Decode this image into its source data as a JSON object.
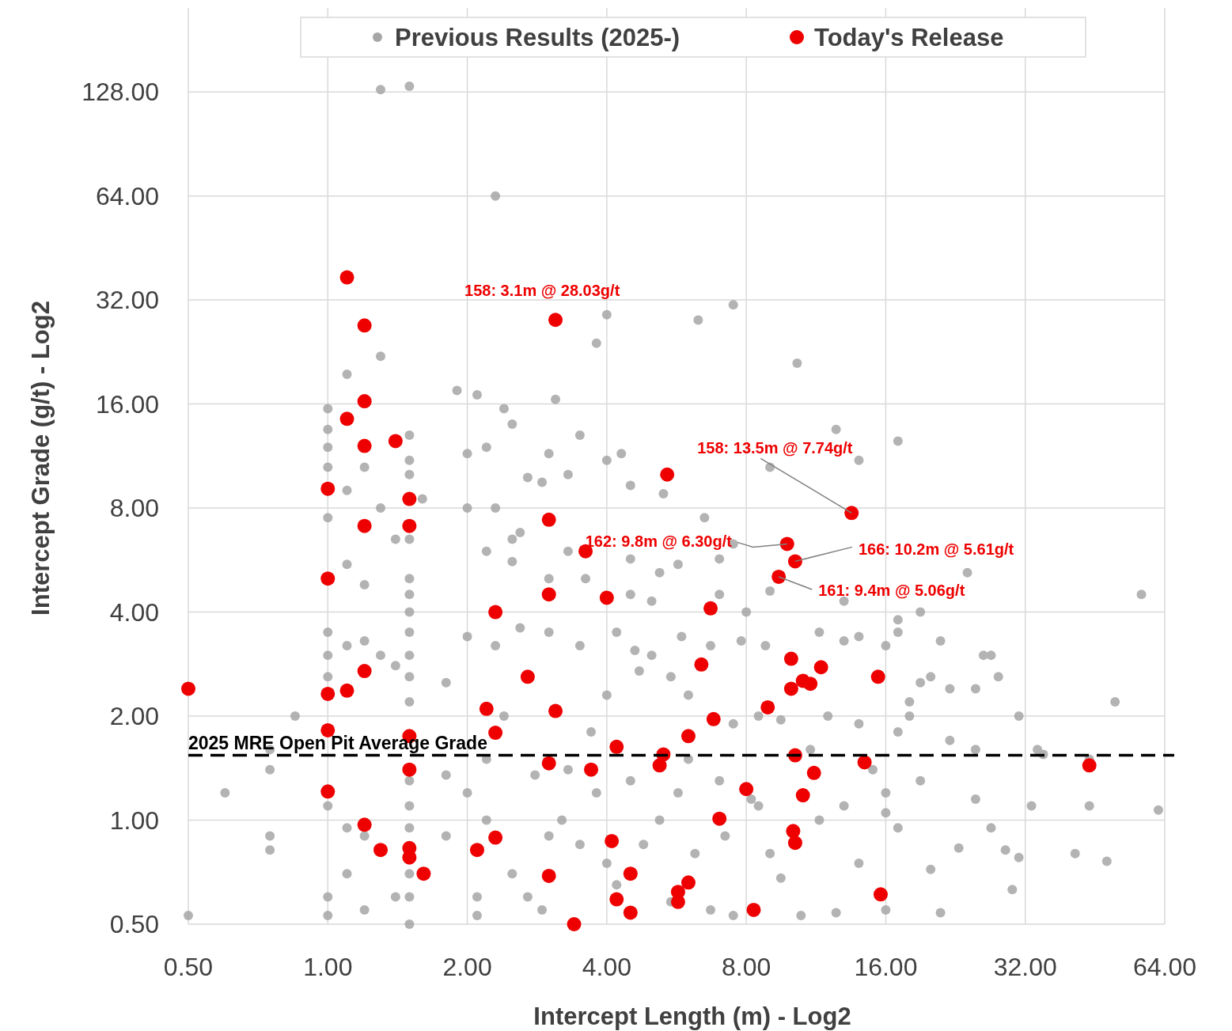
{
  "chart_data": {
    "type": "scatter",
    "xlabel": "Intercept Length (m) - Log2",
    "ylabel": "Intercept Grade (g/t) - Log2",
    "log": "xy",
    "grid": true,
    "legend": "top",
    "marker": "circle",
    "xlim": [
      0.5,
      64
    ],
    "ylim": [
      0.5,
      224
    ],
    "xticks": [
      {
        "value": 0.5,
        "label": "0.50"
      },
      {
        "value": 1,
        "label": "1.00"
      },
      {
        "value": 2,
        "label": "2.00"
      },
      {
        "value": 4,
        "label": "4.00"
      },
      {
        "value": 8,
        "label": "8.00"
      },
      {
        "value": 16,
        "label": "16.00"
      },
      {
        "value": 32,
        "label": "32.00"
      },
      {
        "value": 64,
        "label": "64.00"
      }
    ],
    "yticks": [
      {
        "value": 0.5,
        "label": "0.50"
      },
      {
        "value": 1,
        "label": "1.00"
      },
      {
        "value": 2,
        "label": "2.00"
      },
      {
        "value": 4,
        "label": "4.00"
      },
      {
        "value": 8,
        "label": "8.00"
      },
      {
        "value": 16,
        "label": "16.00"
      },
      {
        "value": 32,
        "label": "32.00"
      },
      {
        "value": 64,
        "label": "64.00"
      },
      {
        "value": 128,
        "label": "128.00"
      }
    ],
    "ref_lines": [
      {
        "axis": "y",
        "value": 1.54,
        "label": "2025 MRE Open Pit Average Grade",
        "color": "#000000",
        "line_style": "dashed"
      }
    ],
    "annotations": [
      {
        "text": "158: 3.1m @ 28.03g/t",
        "x": 3.1,
        "y": 28.03
      },
      {
        "text": "158: 13.5m @ 7.74g/t",
        "x": 13.5,
        "y": 7.74
      },
      {
        "text": "162: 9.8m @ 6.30g/t",
        "x": 9.8,
        "y": 6.3
      },
      {
        "text": "166: 10.2m @ 5.61g/t",
        "x": 10.2,
        "y": 5.61
      },
      {
        "text": "161: 9.4m @ 5.06g/t",
        "x": 9.4,
        "y": 5.06
      }
    ],
    "series": [
      {
        "name": "Previous Results (2025-)",
        "color": "#a6a6a6",
        "x": [
          1.3,
          1.5,
          2.3,
          7.5,
          4.0,
          6.3,
          3.8,
          10.3,
          1.1,
          1.3,
          1.9,
          2.1,
          2.4,
          2.5,
          3.1,
          1.0,
          1.0,
          1.0,
          1.0,
          1.1,
          1.0,
          1.1,
          1.2,
          1.0,
          1.0,
          1.0,
          1.1,
          1.2,
          1.3,
          1.4,
          1.5,
          1.5,
          1.5,
          1.5,
          1.5,
          1.5,
          1.5,
          1.5,
          1.5,
          1.5,
          1.5,
          1.4,
          1.3,
          1.2,
          1.6,
          3.5,
          4.3,
          4.0,
          3.0,
          2.2,
          2.0,
          12.5,
          17,
          9,
          14,
          2.7,
          4.5,
          5.3,
          3.3,
          2.9,
          2.0,
          2.3,
          2.6,
          2.2,
          2.5,
          2.5,
          3.0,
          3.3,
          3.6,
          4.5,
          5.2,
          5.7,
          6.5,
          7,
          7.5,
          8,
          9,
          7,
          5,
          4.5,
          13,
          17,
          17,
          19,
          21,
          24,
          26,
          27,
          57,
          3,
          2,
          2.3,
          2.6,
          3.5,
          4.2,
          4.6,
          5,
          5.8,
          6.7,
          7.8,
          8.8,
          11.5,
          13,
          14,
          16,
          19,
          20,
          22,
          25,
          28,
          18,
          18,
          17,
          22,
          31,
          44,
          50,
          34,
          14,
          12,
          9.5,
          8.5,
          7.5,
          6,
          5.5,
          4,
          3.7,
          4.7,
          2.4,
          1.8,
          0.85,
          0.75,
          0.75,
          0.6,
          0.75,
          0.75,
          1.0,
          1.1,
          1.2,
          1.5,
          1.5,
          1.5,
          1.5,
          1.5,
          1.5,
          1.0,
          1.0,
          1.1,
          1.2,
          1.4,
          1.8,
          2.0,
          2.2,
          2.1,
          2.1,
          2.5,
          2.7,
          2.9,
          3.0,
          3.2,
          3.5,
          3.8,
          4.0,
          4.2,
          4.8,
          5.2,
          5.7,
          5.5,
          6.2,
          6.7,
          7.2,
          7.5,
          8.5,
          9,
          9.5,
          10.5,
          11.5,
          12.5,
          13,
          14,
          16,
          16,
          17,
          19,
          20,
          21,
          23,
          25,
          27,
          29,
          30,
          31,
          33,
          41,
          44,
          48,
          62,
          0.5,
          11,
          15,
          16,
          25,
          35,
          6,
          7,
          8.2,
          4.5,
          3.3,
          2.8,
          2.2,
          1.8
        ],
        "values": [
          130,
          133,
          64,
          31,
          29,
          28,
          24,
          21,
          19.5,
          22,
          17.5,
          17,
          15.5,
          14,
          16.5,
          15.5,
          13.5,
          12,
          10.5,
          9,
          7.5,
          5.5,
          4.8,
          3.5,
          3.0,
          2.6,
          3.2,
          3.3,
          3.0,
          2.8,
          3.0,
          2.6,
          2.2,
          4.5,
          5.0,
          4.0,
          3.5,
          10,
          11,
          13,
          6.5,
          6.5,
          8,
          10.5,
          8.5,
          13,
          11.5,
          11,
          11.5,
          12,
          11.5,
          13.5,
          12.5,
          10.5,
          11,
          9.8,
          9.3,
          8.8,
          10,
          9.5,
          8.0,
          8,
          6.8,
          6,
          5.6,
          6.5,
          5,
          6,
          5,
          5.7,
          5.2,
          5.5,
          7.5,
          5.7,
          6.3,
          4,
          4.6,
          4.5,
          4.3,
          4.5,
          4.3,
          3.5,
          3.8,
          4,
          3.3,
          5.2,
          3,
          3,
          4.5,
          3.5,
          3.4,
          3.2,
          3.6,
          3.2,
          3.5,
          3.1,
          3,
          3.4,
          3.2,
          3.3,
          3.2,
          3.5,
          3.3,
          3.4,
          3.2,
          2.5,
          2.6,
          2.4,
          2.4,
          2.6,
          2.2,
          2.0,
          1.8,
          1.7,
          2.0,
          1.5,
          2.2,
          1.6,
          1.9,
          2.0,
          1.95,
          2.0,
          1.9,
          2.3,
          2.6,
          2.3,
          1.8,
          2.7,
          2.0,
          2.5,
          2.0,
          1.6,
          1.4,
          1.2,
          0.9,
          0.82,
          1.1,
          0.95,
          0.9,
          1.3,
          1.1,
          0.95,
          0.7,
          0.6,
          0.5,
          0.6,
          0.53,
          0.7,
          0.55,
          0.6,
          0.9,
          1.2,
          1.0,
          0.6,
          0.53,
          0.7,
          0.6,
          0.55,
          0.9,
          1.0,
          0.85,
          1.2,
          0.75,
          0.65,
          0.85,
          1.0,
          1.2,
          0.58,
          0.8,
          0.55,
          0.9,
          0.53,
          1.1,
          0.8,
          0.68,
          0.53,
          1.0,
          0.54,
          1.1,
          0.75,
          1.05,
          0.55,
          0.95,
          1.3,
          0.72,
          0.54,
          0.83,
          1.15,
          0.95,
          0.82,
          0.63,
          0.78,
          1.1,
          0.8,
          1.1,
          0.76,
          1.07,
          0.53,
          1.6,
          1.4,
          1.2,
          1.6,
          1.55,
          1.5,
          1.3,
          1.15,
          1.3,
          1.4,
          1.35,
          1.5,
          1.35
        ]
      },
      {
        "name": "Today's Release",
        "color": "#ee0000",
        "x": [
          0.5,
          1.1,
          1.2,
          1.2,
          1.1,
          1.2,
          1.4,
          1.0,
          1.5,
          1.2,
          1.5,
          1.0,
          1.2,
          1.1,
          1.0,
          1.0,
          1.5,
          1.5,
          1.0,
          1.2,
          1.3,
          1.5,
          1.5,
          1.61,
          3.1,
          3.0,
          3.6,
          3.0,
          4.0,
          2.3,
          2.7,
          2.2,
          3.1,
          2.3,
          4.2,
          3.0,
          3.7,
          2.1,
          2.3,
          4.1,
          3.0,
          4.5,
          3.4,
          4.2,
          4.5,
          5.4,
          6.7,
          6.4,
          6.8,
          6.0,
          5.3,
          5.2,
          7.0,
          6.0,
          5.7,
          5.7,
          8.3,
          8.0,
          8.9,
          13.5,
          9.8,
          10.2,
          9.4,
          10.0,
          10.0,
          10.6,
          11.0,
          11.6,
          10.2,
          11.2,
          10.6,
          10.1,
          10.2,
          14.4,
          15.4,
          15.6,
          44
        ],
        "values": [
          2.4,
          37.2,
          27,
          16.3,
          14.5,
          12.1,
          12.5,
          9.1,
          8.5,
          7.1,
          7.1,
          5.0,
          2.7,
          2.37,
          2.32,
          1.82,
          1.75,
          1.4,
          1.21,
          0.97,
          0.82,
          0.83,
          0.78,
          0.7,
          28.03,
          7.4,
          6.0,
          4.5,
          4.4,
          4.0,
          2.6,
          2.1,
          2.07,
          1.79,
          1.63,
          1.46,
          1.4,
          0.82,
          0.89,
          0.87,
          0.69,
          0.7,
          0.5,
          0.59,
          0.54,
          10.0,
          4.1,
          2.82,
          1.96,
          1.75,
          1.55,
          1.44,
          1.01,
          0.66,
          0.62,
          0.58,
          0.55,
          1.23,
          2.12,
          7.74,
          6.3,
          5.61,
          5.06,
          2.93,
          2.4,
          2.53,
          2.48,
          2.77,
          1.54,
          1.37,
          1.18,
          0.93,
          0.86,
          1.47,
          2.6,
          0.61,
          1.44
        ]
      }
    ]
  }
}
